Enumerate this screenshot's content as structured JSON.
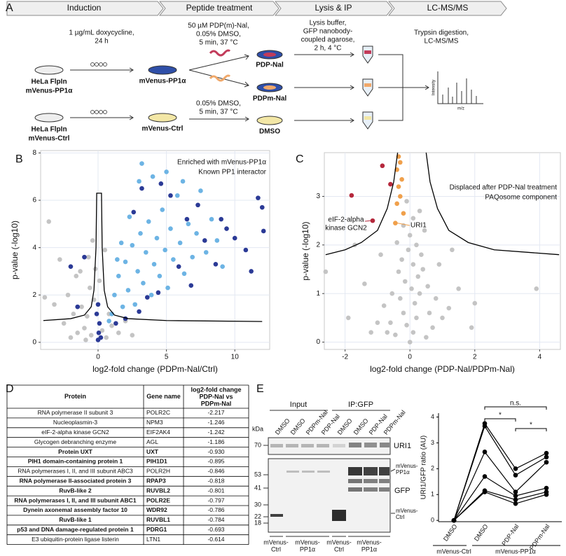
{
  "panel_labels": [
    "A",
    "B",
    "C",
    "D",
    "E"
  ],
  "workflow": {
    "steps": [
      "Induction",
      "Peptide treatment",
      "Lysis & IP",
      "LC-MS/MS"
    ],
    "induction_condition": [
      "1 µg/mL doxycycline,",
      "24 h"
    ],
    "cell_line_pp1": [
      "HeLa FlpIn",
      "mVenus-PP1α"
    ],
    "cell_line_ctrl": [
      "HeLa FlpIn",
      "mVenus-Ctrl"
    ],
    "induced_pp1": "mVenus-PP1α",
    "induced_ctrl": "mVenus-Ctrl",
    "peptide_condition": [
      "50 µM PDP(m)-Nal,",
      "0.05% DMSO,",
      "5 min, 37 °C"
    ],
    "dmso_condition": [
      "0.05% DMSO,",
      "5 min, 37 °C"
    ],
    "samples": [
      "PDP-Nal",
      "PDPm-Nal",
      "DMSO"
    ],
    "ip_condition": [
      "Lysis buffer,",
      "GFP nanobody-",
      "coupled agarose,",
      "2 h, 4 °C"
    ],
    "ms_condition": [
      "Trypsin digestion,",
      "LC-MS/MS"
    ],
    "spectrum_y": "Intensity",
    "spectrum_x": "m/z"
  },
  "chart_data": [
    {
      "type": "scatter",
      "x_label": "log2-fold change (PDPm-Nal/Ctrl)",
      "y_label": "p-value (-log10)",
      "xlim": [
        -4.2,
        12.55
      ],
      "ylim": [
        -0.3,
        8.1
      ],
      "xticks": [
        0,
        5,
        10
      ],
      "yticks": [
        0,
        2,
        4,
        6,
        8
      ],
      "grid": true,
      "series": [
        {
          "color": "#c4c4c4",
          "x": [
            -0.5,
            -1,
            -1.5,
            -2,
            -0.8,
            -1.2,
            -0.3,
            -0.6,
            -1.8,
            -2.5,
            -3.2,
            -3.6,
            -2.8,
            -0.2,
            0.3,
            0.6,
            1.0,
            1.5,
            2.0,
            -0.4,
            0.1,
            -1.6,
            -2.2,
            0.8,
            -0.9,
            -1.3,
            -0.7,
            0.5,
            2.5,
            -3.9
          ],
          "y": [
            0.3,
            0.6,
            0.4,
            0.2,
            1.1,
            1.5,
            1.8,
            2.3,
            1.2,
            0.8,
            1.6,
            5.1,
            3.5,
            3.1,
            0.5,
            0.2,
            0.7,
            0.4,
            0.9,
            4.3,
            2.6,
            2.8,
            2.0,
            1.2,
            0.1,
            3.0,
            3.6,
            3.9,
            0.3,
            1.9
          ]
        },
        {
          "name": "Enriched with mVenus-PP1α",
          "color": "#6db4e4",
          "x": [
            1.2,
            1.5,
            1.8,
            2.0,
            2.2,
            2.5,
            2.7,
            2.9,
            3.1,
            3.3,
            3.5,
            3.7,
            3.9,
            4.1,
            4.3,
            4.5,
            4.7,
            4.9,
            5.1,
            5.3,
            5.5,
            5.8,
            6.0,
            6.3,
            6.6,
            6.9,
            7.2,
            7.5,
            7.9,
            8.3,
            8.7,
            9.1,
            3.0,
            4.0,
            3.2,
            5.0,
            1.0,
            1.4,
            2.3,
            6.2,
            0.8,
            1.7
          ],
          "y": [
            2.0,
            2.8,
            1.5,
            3.4,
            2.2,
            4.1,
            1.6,
            3.0,
            4.6,
            2.5,
            3.8,
            5.1,
            2.0,
            3.3,
            4.4,
            2.8,
            5.6,
            3.9,
            2.3,
            4.8,
            3.5,
            6.2,
            4.2,
            2.9,
            5.0,
            3.6,
            4.6,
            6.4,
            3.8,
            5.2,
            4.3,
            3.2,
            6.8,
            7.0,
            7.55,
            7.2,
            1.2,
            3.5,
            5.3,
            6.8,
            0.9,
            4.2
          ]
        },
        {
          "name": "Known PP1 interactor",
          "color": "#2b3a96",
          "x": [
            0.0,
            0.05,
            0.1,
            -0.1,
            0.0,
            0.2,
            1.3,
            2.0,
            3.0,
            -1.5,
            -2.0,
            -1.0,
            2.6,
            3.2,
            4.6,
            5.3,
            6.5,
            7.3,
            7.8,
            8.6,
            9.0,
            9.4,
            10.0,
            10.8,
            11.2,
            11.7,
            12.1,
            12.0,
            4.4,
            5.9,
            6.8,
            3.6
          ],
          "y": [
            0.1,
            0.4,
            0.8,
            1.2,
            1.6,
            0.2,
            0.8,
            1.0,
            1.3,
            1.5,
            3.2,
            3.6,
            5.5,
            6.5,
            6.7,
            6.2,
            5.2,
            5.8,
            4.3,
            3.3,
            5.2,
            4.8,
            4.4,
            3.9,
            3.0,
            6.1,
            4.7,
            5.7,
            2.1,
            3.2,
            2.4,
            1.9
          ]
        }
      ],
      "curves": [
        {
          "x": [
            -4,
            -2,
            -1,
            -0.5,
            -0.3,
            -0.15,
            -0.1,
            0.25,
            0.3,
            0.45,
            0.7,
            1.2,
            2.2,
            5,
            12
          ],
          "y": [
            0.92,
            1.0,
            1.15,
            1.5,
            2.2,
            4,
            6.3,
            6.3,
            4,
            2.2,
            1.5,
            1.15,
            1.0,
            0.92,
            0.88
          ]
        }
      ]
    },
    {
      "type": "scatter",
      "x_label": "log2-fold change (PDP-Nal/PDPm-Nal)",
      "y_label": "p-value (-log10)",
      "xlim": [
        -2.64,
        4.64
      ],
      "ylim": [
        -0.15,
        3.9
      ],
      "xticks": [
        -2,
        0,
        2,
        4
      ],
      "yticks": [
        0,
        1,
        2,
        3
      ],
      "grid": true,
      "series": [
        {
          "color": "#c4c4c4",
          "x": [
            0.0,
            0.1,
            -0.1,
            0.2,
            -0.2,
            0.15,
            -0.3,
            0.3,
            0.05,
            -0.15,
            0.25,
            -0.35,
            0.4,
            0.1,
            -0.25,
            0.35,
            -0.05,
            0.2,
            -0.4,
            0.0,
            0.45,
            -0.2,
            0.1,
            0.55,
            -0.55,
            0.6,
            -0.6,
            0.7,
            -0.7,
            0.8,
            -0.8,
            1.0,
            -1.0,
            1.2,
            -1.2,
            1.5,
            -1.4,
            1.9,
            -1.9,
            2.0,
            -2.6,
            3.9,
            -1.7,
            0.9,
            -0.9,
            1.3,
            0.5,
            -0.45,
            0.3,
            -0.1
          ],
          "y": [
            0.0,
            0.2,
            0.35,
            0.5,
            0.6,
            0.8,
            0.9,
            1.0,
            1.1,
            1.25,
            1.35,
            1.45,
            1.5,
            1.6,
            1.7,
            1.8,
            1.9,
            2.0,
            2.05,
            2.2,
            2.3,
            2.4,
            2.55,
            1.15,
            1.0,
            0.6,
            0.4,
            0.3,
            0.2,
            0.9,
            0.75,
            0.5,
            0.4,
            0.7,
            0.2,
            1.1,
            1.2,
            0.3,
            0.5,
            0.8,
            1.45,
            1.1,
            2.0,
            1.6,
            1.8,
            1.9,
            0.1,
            0.15,
            2.7,
            2.9
          ]
        },
        {
          "name": "Displaced after PDP-Nal treatment",
          "color": "#b5283c",
          "x": [
            -1.8,
            -0.85,
            -1.15,
            -0.6
          ],
          "y": [
            3.02,
            3.63,
            2.5,
            3.25
          ]
        },
        {
          "name": "PAQosome component",
          "color": "#f0a04b",
          "x": [
            -0.35,
            -0.3,
            -0.4,
            -0.25,
            -0.35,
            -0.3,
            -0.4,
            -0.2,
            -0.45
          ],
          "y": [
            3.82,
            3.7,
            3.55,
            3.35,
            3.2,
            3.0,
            2.85,
            2.65,
            2.45
          ]
        }
      ],
      "curves": [
        {
          "x": [
            -2.6,
            -2.0,
            -1.5,
            -1.0,
            -0.7,
            -0.5,
            -0.38
          ],
          "y": [
            1.8,
            1.9,
            2.05,
            2.3,
            2.75,
            3.3,
            3.9
          ]
        },
        {
          "x": [
            0.5,
            0.62,
            0.85,
            1.2,
            1.8,
            2.6,
            4.6
          ],
          "y": [
            3.9,
            3.3,
            2.75,
            2.3,
            2.05,
            1.9,
            1.8
          ]
        }
      ],
      "annotations": [
        [
          "eIF-2-alpha",
          "kinase GCN2"
        ],
        "URI1"
      ]
    },
    {
      "type": "line",
      "categories": [
        "DMSO",
        "DMSO",
        "PDP-Nal",
        "PDPm-Nal"
      ],
      "y_label": "URI1/GFP ratio (AU)",
      "ylim": [
        -0.05,
        4.15
      ],
      "yticks": [
        0,
        1,
        2,
        3,
        4
      ],
      "color": "#000000",
      "series": [
        {
          "values": [
            0.0,
            3.75,
            2.0,
            2.6
          ]
        },
        {
          "values": [
            0.0,
            3.65,
            1.75,
            2.45
          ]
        },
        {
          "values": [
            0.0,
            2.65,
            1.1,
            2.25
          ]
        },
        {
          "values": [
            0.0,
            1.7,
            0.95,
            1.25
          ]
        },
        {
          "values": [
            0.0,
            1.15,
            0.8,
            1.1
          ]
        },
        {
          "values": [
            0.0,
            1.1,
            0.65,
            1.0
          ]
        }
      ],
      "group_labels": [
        "mVenus-Ctrl",
        "mVenus-PP1α"
      ],
      "annotations": [
        "*",
        "*",
        "n.s."
      ]
    }
  ],
  "table": {
    "header": [
      "Protein",
      "Gene name",
      [
        "log2-fold change",
        "PDP-Nal vs",
        "PDPm-Nal"
      ]
    ],
    "rows": [
      [
        "RNA polymerase II subunit 3",
        "POLR2C",
        "-2.217"
      ],
      [
        "Nucleoplasmin-3",
        "NPM3",
        "-1.246"
      ],
      [
        "eIF-2-alpha kinase GCN2",
        "EIF2AK4",
        "-1.242"
      ],
      [
        "Glycogen debranching enzyme",
        "AGL",
        "-1.186"
      ],
      [
        "Protein UXT",
        "UXT",
        "-0.930"
      ],
      [
        "PIH1 domain-containing protein 1",
        "PIH1D1",
        "-0.895"
      ],
      [
        "RNA polymerases I, II, and III subunit ABC3",
        "POLR2H",
        "-0.846"
      ],
      [
        "RNA polymerase II-associated protein 3",
        "RPAP3",
        "-0.818"
      ],
      [
        "RuvB-like 2",
        "RUVBL2",
        "-0.801"
      ],
      [
        "RNA polymerases I, II, and III subunit ABC1",
        "POLR2E",
        "-0.797"
      ],
      [
        "Dynein axonemal assembly factor 10",
        "WDR92",
        "-0.786"
      ],
      [
        "RuvB-like 1",
        "RUVBL1",
        "-0.784"
      ],
      [
        "p53 and DNA damage-regulated protein 1",
        "PDRG1",
        "-0.693"
      ],
      [
        "E3 ubiquitin-protein ligase listerin",
        "LTN1",
        "-0.614"
      ]
    ],
    "bold_rows": [
      4,
      5,
      7,
      8,
      9,
      10,
      11,
      12
    ]
  },
  "blot": {
    "groups": [
      "Input",
      "IP:GFP"
    ],
    "lanes": [
      "DMSO",
      "DMSO",
      "PDPm-Nal",
      "PDP-Nal",
      "DMSO",
      "DMSO",
      "PDP-Nal",
      "PDPm-Nal"
    ],
    "mw_unit": "kDa",
    "mw_markers": [
      "70",
      "53",
      "41",
      "30",
      "22",
      "18"
    ],
    "band_uri1": "URI1",
    "band_pp1": [
      "mVenus-",
      "PP1α"
    ],
    "band_gfp": "GFP",
    "band_ctrl": [
      "mVenus-",
      "Ctrl"
    ],
    "samples": [
      [
        "mVenus-",
        "Ctrl"
      ],
      [
        "mVenus-",
        "PP1α"
      ],
      [
        "mVenus-",
        "Ctrl"
      ],
      [
        "mVenus-",
        "PP1α"
      ]
    ]
  }
}
